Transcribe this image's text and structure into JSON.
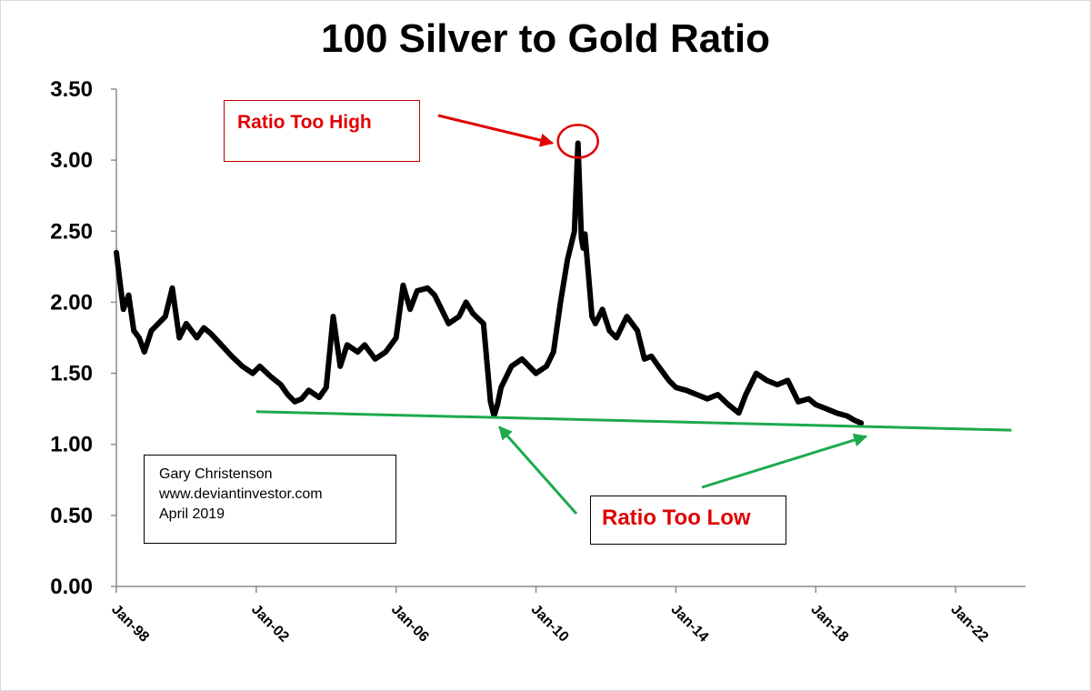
{
  "chart_data": {
    "type": "line",
    "title": "100 Silver to Gold Ratio",
    "xlabel": "",
    "ylabel": "",
    "ylim": [
      0,
      3.5
    ],
    "xlim": [
      "Jan-98",
      "Jan-24"
    ],
    "y_ticks": [
      "0.00",
      "0.50",
      "1.00",
      "1.50",
      "2.00",
      "2.50",
      "3.00",
      "3.50"
    ],
    "x_ticks": [
      "Jan-98",
      "Jan-02",
      "Jan-06",
      "Jan-10",
      "Jan-14",
      "Jan-18",
      "Jan-22"
    ],
    "grid": false,
    "legend": "none",
    "series": [
      {
        "color": "#000000",
        "x": [
          1998.0,
          1998.1,
          1998.2,
          1998.35,
          1998.5,
          1998.65,
          1998.8,
          1999.0,
          1999.2,
          1999.4,
          1999.6,
          1999.8,
          2000.0,
          2000.15,
          2000.3,
          2000.5,
          2000.7,
          2001.0,
          2001.3,
          2001.6,
          2001.9,
          2002.1,
          2002.4,
          2002.7,
          2002.9,
          2003.1,
          2003.3,
          2003.5,
          2003.8,
          2004.0,
          2004.2,
          2004.4,
          2004.6,
          2004.9,
          2005.1,
          2005.4,
          2005.7,
          2006.0,
          2006.2,
          2006.4,
          2006.6,
          2006.9,
          2007.1,
          2007.3,
          2007.5,
          2007.8,
          2008.0,
          2008.2,
          2008.5,
          2008.7,
          2008.8,
          2008.9,
          2009.0,
          2009.3,
          2009.6,
          2010.0,
          2010.3,
          2010.5,
          2010.7,
          2010.9,
          2011.1,
          2011.2,
          2011.3,
          2011.35,
          2011.4,
          2011.5,
          2011.6,
          2011.7,
          2011.9,
          2012.1,
          2012.3,
          2012.6,
          2012.9,
          2013.1,
          2013.3,
          2013.5,
          2013.8,
          2014.0,
          2014.3,
          2014.6,
          2014.9,
          2015.2,
          2015.5,
          2015.8,
          2016.0,
          2016.3,
          2016.6,
          2016.9,
          2017.2,
          2017.5,
          2017.8,
          2018.0,
          2018.3,
          2018.6,
          2018.9,
          2019.1,
          2019.3
        ],
        "values": [
          2.35,
          2.15,
          1.95,
          2.05,
          1.8,
          1.75,
          1.65,
          1.8,
          1.85,
          1.9,
          2.1,
          1.75,
          1.85,
          1.8,
          1.75,
          1.82,
          1.78,
          1.7,
          1.62,
          1.55,
          1.5,
          1.55,
          1.48,
          1.42,
          1.35,
          1.3,
          1.32,
          1.38,
          1.33,
          1.4,
          1.9,
          1.55,
          1.7,
          1.65,
          1.7,
          1.6,
          1.65,
          1.75,
          2.12,
          1.95,
          2.08,
          2.1,
          2.05,
          1.95,
          1.85,
          1.9,
          2.0,
          1.92,
          1.85,
          1.3,
          1.2,
          1.28,
          1.4,
          1.55,
          1.6,
          1.5,
          1.55,
          1.65,
          2.0,
          2.3,
          2.5,
          3.12,
          2.45,
          2.38,
          2.48,
          2.2,
          1.9,
          1.85,
          1.95,
          1.8,
          1.75,
          1.9,
          1.8,
          1.6,
          1.62,
          1.55,
          1.45,
          1.4,
          1.38,
          1.35,
          1.32,
          1.35,
          1.28,
          1.22,
          1.35,
          1.5,
          1.45,
          1.42,
          1.45,
          1.3,
          1.32,
          1.28,
          1.25,
          1.22,
          1.2,
          1.17,
          1.15
        ]
      }
    ],
    "trendline": {
      "color": "#1daa4d",
      "x": [
        2002.0,
        2023.6
      ],
      "values": [
        1.23,
        1.1
      ]
    },
    "annotations": {
      "high_label": "Ratio Too High",
      "low_label": "Ratio Too Low"
    }
  },
  "credit": {
    "line1": "Gary Christenson",
    "line2": "www.deviantinvestor.com",
    "line3": "April 2019"
  }
}
